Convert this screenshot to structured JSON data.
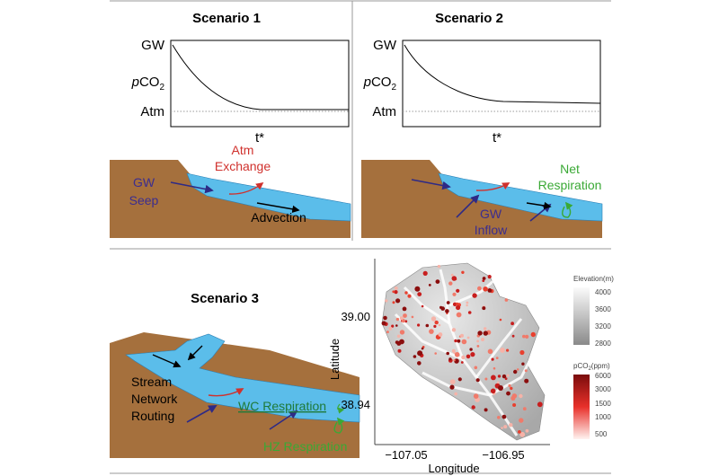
{
  "scenario_1": {
    "title": "Scenario 1",
    "y_top": "GW",
    "y_label": [
      "p",
      "CO",
      "2"
    ],
    "y_bottom": "Atm",
    "x_label": "t*",
    "labels": {
      "atm_exchange": [
        "Atm",
        "Exchange"
      ],
      "gw_seep": [
        "GW",
        "Seep"
      ],
      "advection": "Advection"
    }
  },
  "scenario_2": {
    "title": "Scenario 2",
    "y_top": "GW",
    "y_label": [
      "p",
      "CO",
      "2"
    ],
    "y_bottom": "Atm",
    "x_label": "t*",
    "labels": {
      "net_respiration": [
        "Net",
        "Respiration"
      ],
      "gw_inflow": [
        "GW",
        "Inflow"
      ]
    }
  },
  "scenario_3": {
    "title": "Scenario 3",
    "labels": {
      "routing": [
        "Stream",
        "Network",
        "Routing"
      ],
      "wc_respiration": "WC Respiration",
      "hz_respiration": "HZ Respiration"
    }
  },
  "map": {
    "y_label": "Latitude",
    "x_label": "Longitude",
    "y_ticks": [
      "39.00",
      "38.94"
    ],
    "x_ticks": [
      "−107.05",
      "−106.95"
    ],
    "elevation_legend": {
      "title": "Elevation(m)",
      "ticks": [
        "4000",
        "3600",
        "3200",
        "2800"
      ]
    },
    "pco2_legend": {
      "title": [
        "pCO",
        "2",
        "(ppm)"
      ],
      "ticks": [
        "6000",
        "3000",
        "1500",
        "1000",
        "500"
      ]
    }
  }
}
